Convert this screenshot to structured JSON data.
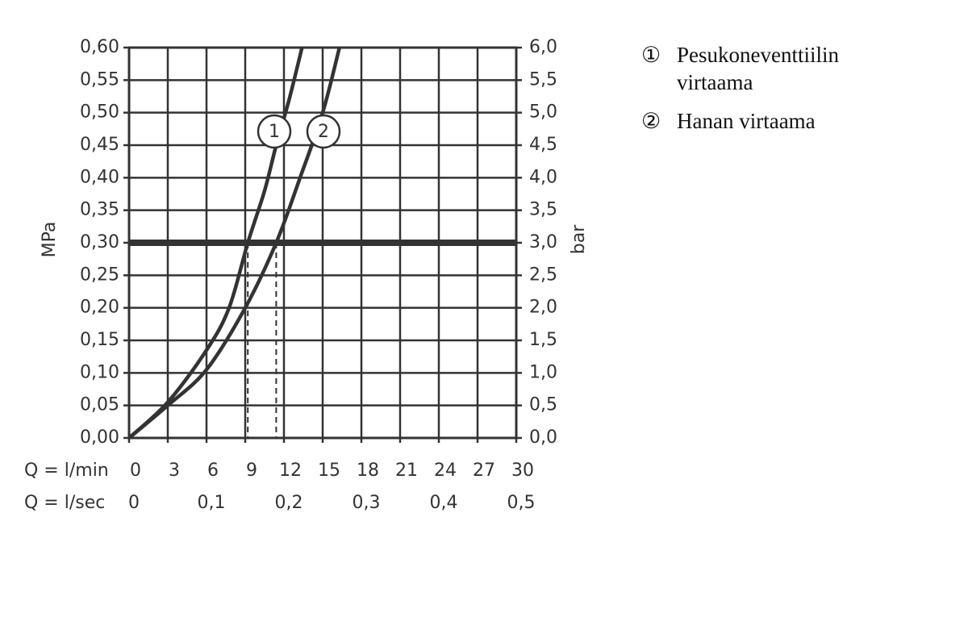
{
  "chart_data": {
    "type": "line",
    "x_label": "Q = l/min",
    "x2_label": "Q = l/sec",
    "y_label": "MPa",
    "y2_label": "bar",
    "xlim": [
      0,
      30
    ],
    "xticks": [
      0,
      3,
      6,
      9,
      12,
      15,
      18,
      21,
      24,
      27,
      30
    ],
    "x2lim": [
      0,
      0.5
    ],
    "x2ticks": [
      0,
      {
        "value": 0.1,
        "label": "0,1"
      },
      {
        "value": 0.2,
        "label": "0,2"
      },
      {
        "value": 0.3,
        "label": "0,3"
      },
      {
        "value": 0.4,
        "label": "0,4"
      },
      {
        "value": 0.5,
        "label": "0,5"
      }
    ],
    "ylim": [
      0,
      0.6
    ],
    "yticks": [
      {
        "value": 0,
        "label": "0,00"
      },
      {
        "value": 0.05,
        "label": "0,05"
      },
      {
        "value": 0.1,
        "label": "0,10"
      },
      {
        "value": 0.15,
        "label": "0,15"
      },
      {
        "value": 0.2,
        "label": "0,20"
      },
      {
        "value": 0.25,
        "label": "0,25"
      },
      {
        "value": 0.3,
        "label": "0,30"
      },
      {
        "value": 0.35,
        "label": "0,35"
      },
      {
        "value": 0.4,
        "label": "0,40"
      },
      {
        "value": 0.45,
        "label": "0,45"
      },
      {
        "value": 0.5,
        "label": "0,50"
      },
      {
        "value": 0.55,
        "label": "0,55"
      },
      {
        "value": 0.6,
        "label": "0,60"
      }
    ],
    "y2lim": [
      0,
      6
    ],
    "y2ticks": [
      {
        "value": 0,
        "label": "0,0"
      },
      {
        "value": 0.5,
        "label": "0,5"
      },
      {
        "value": 1,
        "label": "1,0"
      },
      {
        "value": 1.5,
        "label": "1,5"
      },
      {
        "value": 2,
        "label": "2,0"
      },
      {
        "value": 2.5,
        "label": "2,5"
      },
      {
        "value": 3,
        "label": "3,0"
      },
      {
        "value": 3.5,
        "label": "3,5"
      },
      {
        "value": 4,
        "label": "4,0"
      },
      {
        "value": 4.5,
        "label": "4,5"
      },
      {
        "value": 5,
        "label": "5,0"
      },
      {
        "value": 5.5,
        "label": "5,5"
      },
      {
        "value": 6,
        "label": "6,0"
      }
    ],
    "grid": true,
    "reference_y": 0.3,
    "reference_x": [
      9.2,
      11.4
    ],
    "series": [
      {
        "name": "Pesukoneventtiilin virtaama",
        "label": "1",
        "symbol": "①",
        "color": "#333333",
        "x": [
          0,
          3,
          6,
          7.75,
          9.2,
          10.5,
          11.4,
          12.4,
          13.4
        ],
        "values": [
          0,
          0.055,
          0.135,
          0.2,
          0.3,
          0.38,
          0.45,
          0.52,
          0.6
        ]
      },
      {
        "name": "Hanan virtaama",
        "label": "2",
        "symbol": "②",
        "color": "#333333",
        "x": [
          0,
          3,
          6,
          9,
          11.4,
          13.25,
          15,
          16.3
        ],
        "values": [
          0,
          0.05,
          0.105,
          0.2,
          0.3,
          0.4,
          0.5,
          0.6
        ]
      }
    ]
  }
}
